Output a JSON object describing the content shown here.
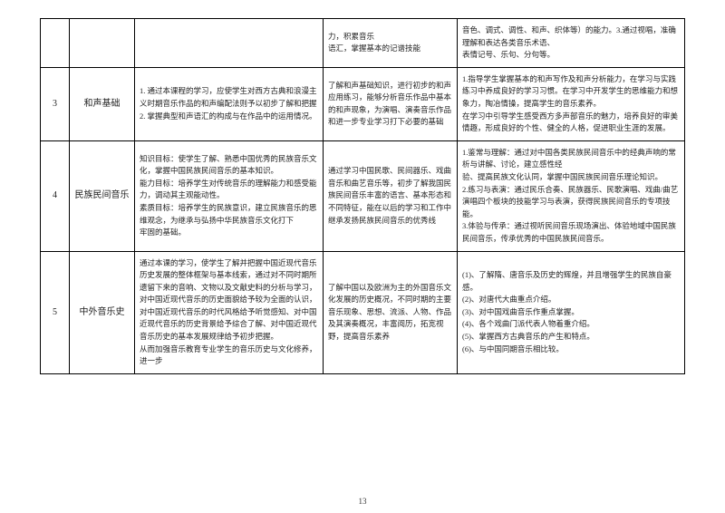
{
  "pageNumber": "13",
  "rows": [
    {
      "num": "",
      "name": "",
      "a": "",
      "b": "力，积累音乐<br>语汇，掌握基本的记谱技能",
      "c": "音色、调式、调性、和声、织体等）的能力。3.通过视唱，准确理解和表达各类音乐术语、<br>表情记号、乐句、分句等。"
    },
    {
      "num": "3",
      "name": "和声基础",
      "a": "1. 通过本课程的学习，应使学生对西方古典和浪漫主义时期音乐作品的和声编配法则予以初步了解和把握<br>2. 掌握典型和声语汇的构成与在作品中的运用情况。",
      "b": "了解和声基础知识，进行初步的和声应用练习，能够分析音乐作品中基本的和声现象，为演唱、演奏音乐作品和进一步专业学习打下必要的基础",
      "c": "1.指导学生掌握基本的和声写作及和声分析能力，在学习与实践练习中养成良好的学习习惯。在学习中开发学生的思维能力和想象力，陶冶情操，提高学生的音乐素养。<br>在学习中引导学生感受西方多声部音乐的魅力，培养良好的审美情趣，形成良好的个性、健全的人格，促进职业生涯的发展。"
    },
    {
      "num": "4",
      "name": "民族民间音乐",
      "a": "知识目标：使学生了解、熟悉中国优秀的民族音乐文化，掌握中国民族民间音乐的基本知识。<br>能力目标：培养学生对传统音乐的理解能力和感受能力，调动其主观能动性。<br>素质目标：培养学生的民族意识，建立民族音乐的思维观念，为继承与弘扬中华民族音乐文化打下<br>牢固的基础。",
      "b": "<span class='indent'>通过学习中国民歌、民间器乐、戏曲音乐和曲艺音乐等，初步了解我国民族民间音乐丰富的语言、基本形态和不同特征，能在以后的学习和工作中继承发扬民族民间音乐的优秀线</span>",
      "c": "1.鉴常与理解：通过对中国各类民族民间音乐中的经典声响的常析与讲解、讨论，建立感性经<br>验、提高民族文化认同，掌握中国民族民间音乐理论知识。<br>2.练习与表演：通过民乐合奏、民族器乐、民歌演唱、戏曲/曲艺演唱四个板块的技能学习与表演，获得民族民间音乐的专项技能。<br>3.体验与传承：通过视听民间音乐现场演出、体验地域中国民族民间音乐，传承优秀的中国民族民间音乐。"
    },
    {
      "num": "5",
      "name": "中外音乐史",
      "a": "通过本课的学习，使学生了解并把握中国近现代音乐历史发展的整体框架与基本线索，通过对不同时期所遗留下来的音响、文物以及文献史料的分析与学习，对中国近现代音乐的历史面貌给予较为全面的认识，对中国近现代音乐的时代风格给予听觉感知、对中国近现代音乐的历史背景给予综合了解、对中国近现代音乐历史的基本发展规律给予初步把握。<br>从而加强音乐教育专业学生的音乐历史与文化修养，进一步",
      "b": "了解中国以及欧洲为主的外国音乐文化发展的历史概况，不同时期的主要音乐现象、思想、流派、人物、作品及其演奏概况，丰富阅历，拓宽视野，提高音乐素养",
      "c": "(1)、了解隋、唐音乐及历史的辉煌，并且增强学生的民族自豪感。<br>(2)、对唐代大曲重点介绍。<br>(3)、对中国戏曲音乐作重点掌握。<br>(4)、各个戏曲门派代表人物着重介绍。<br>(5)、掌握西方古典音乐的产生和特点。<br>(6)、与中国同期音乐相比较。"
    }
  ]
}
